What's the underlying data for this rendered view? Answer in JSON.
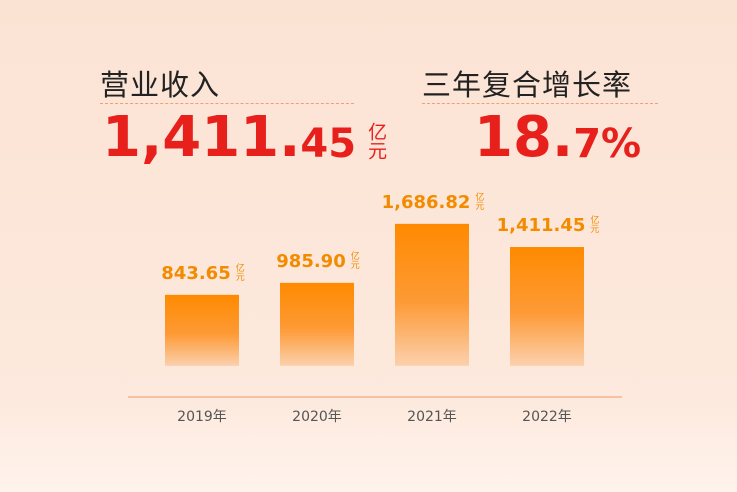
{
  "header": {
    "left_title": "营业收入",
    "left_value_parts": [
      "1,411.",
      "45"
    ],
    "left_unit": "亿元",
    "right_title": "三年复合增长率",
    "right_value_parts": [
      "18.",
      "7%"
    ]
  },
  "chart_data": {
    "type": "bar",
    "categories": [
      "2019年",
      "2020年",
      "2021年",
      "2022年"
    ],
    "values": [
      843.65,
      985.9,
      1686.82,
      1411.45
    ],
    "value_labels": [
      "843.65",
      "985.90",
      "1,686.82",
      "1,411.45"
    ],
    "unit": "亿元",
    "color": "#ff8a00",
    "ylim": [
      -370,
      1780
    ]
  }
}
